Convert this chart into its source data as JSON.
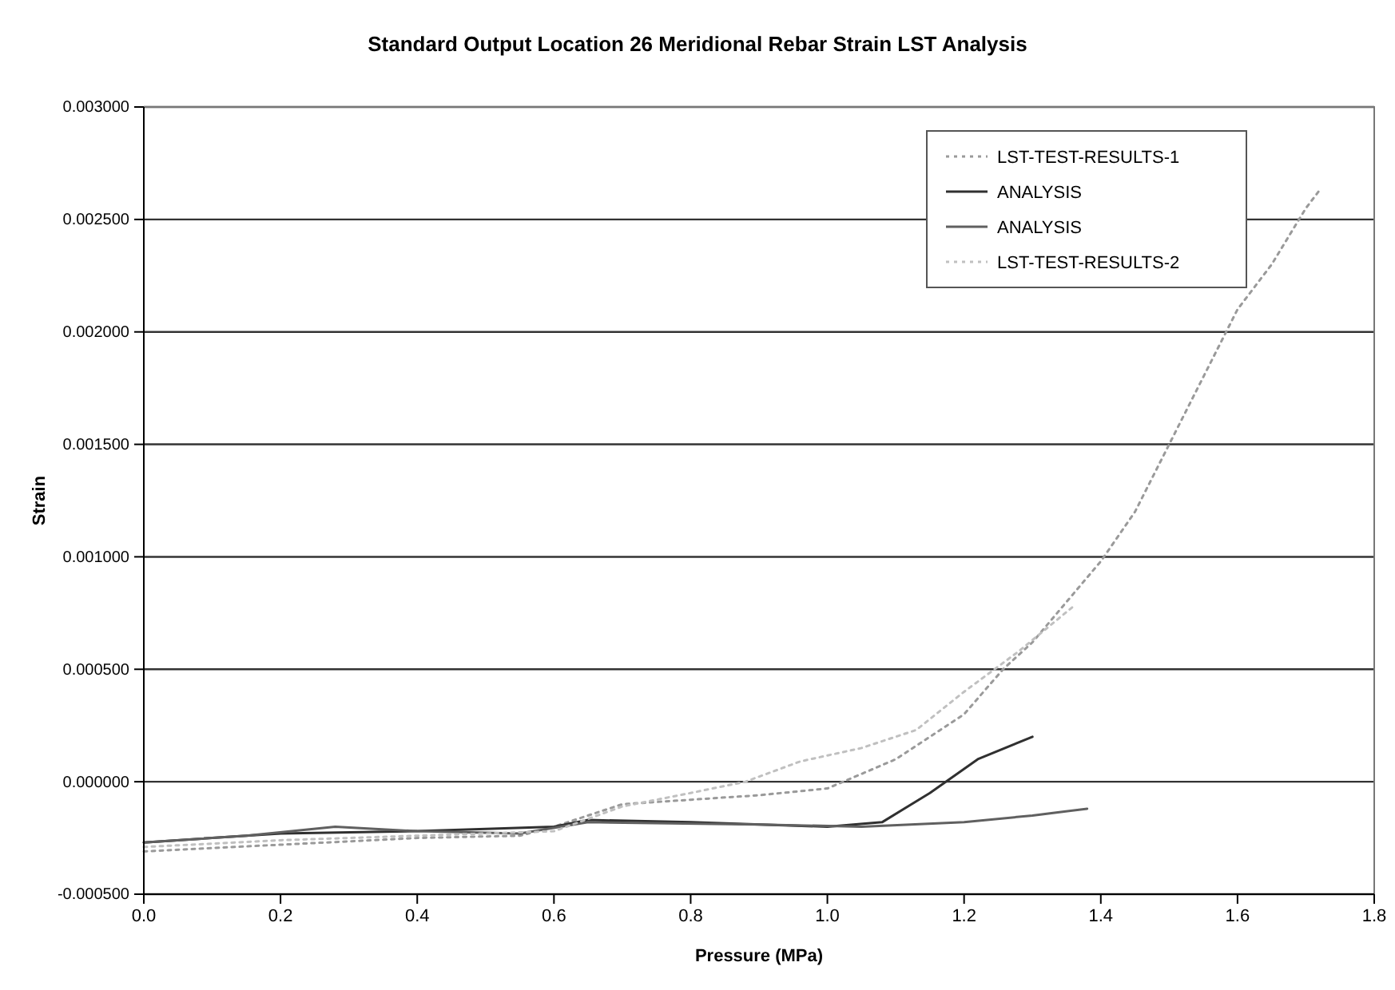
{
  "chart_data": {
    "type": "line",
    "title": "Standard Output Location 26 Meridional Rebar Strain LST Analysis",
    "xlabel": "Pressure (MPa)",
    "ylabel": "Strain",
    "xlim": [
      0,
      1.8
    ],
    "xticks": [
      {
        "value": 0,
        "label": "0.0"
      },
      {
        "value": 0.2,
        "label": "0.2"
      },
      {
        "value": 0.4,
        "label": "0.4"
      },
      {
        "value": 0.6,
        "label": "0.6"
      },
      {
        "value": 0.8,
        "label": "0.8"
      },
      {
        "value": 1,
        "label": "1.0"
      },
      {
        "value": 1.2,
        "label": "1.2"
      },
      {
        "value": 1.4,
        "label": "1.4"
      },
      {
        "value": 1.6,
        "label": "1.6"
      },
      {
        "value": 1.8,
        "label": "1.8"
      }
    ],
    "ylim": [
      -0.0005,
      0.003
    ],
    "yticks": [
      {
        "value": -0.0005,
        "label": "-0.000500"
      },
      {
        "value": 0,
        "label": "0.000000"
      },
      {
        "value": 0.0005,
        "label": "0.000500"
      },
      {
        "value": 0.001,
        "label": "0.001000"
      },
      {
        "value": 0.0015,
        "label": "0.001500"
      },
      {
        "value": 0.002,
        "label": "0.002000"
      },
      {
        "value": 0.0025,
        "label": "0.002500"
      },
      {
        "value": 0.003,
        "label": "0.003000"
      }
    ],
    "grid": "y",
    "legend": "top right",
    "series": [
      {
        "name": "LST-TEST-RESULTS-1",
        "color": "#9a9a9a",
        "line_style": "dotted",
        "x": [
          0,
          0.2,
          0.4,
          0.55,
          0.6,
          0.7,
          0.8,
          0.9,
          1.0,
          1.1,
          1.2,
          1.257,
          1.3,
          1.4,
          1.45,
          1.5,
          1.55,
          1.6,
          1.65,
          1.7,
          1.72
        ],
        "values": [
          -0.00031,
          -0.00028,
          -0.00025,
          -0.00024,
          -0.0002,
          -0.0001,
          -8e-05,
          -6e-05,
          -3e-05,
          0.0001,
          0.0003,
          0.0005,
          0.00062,
          0.00098,
          0.0012,
          0.0015,
          0.0018,
          0.0021,
          0.0023,
          0.00255,
          0.00263
        ]
      },
      {
        "name": "ANALYSIS",
        "color": "#303030",
        "line_style": "solid",
        "x": [
          0,
          0.2,
          0.4,
          0.6,
          0.65,
          0.8,
          1.0,
          1.08,
          1.15,
          1.22,
          1.3
        ],
        "values": [
          -0.00027,
          -0.00023,
          -0.00022,
          -0.0002,
          -0.00017,
          -0.00018,
          -0.0002,
          -0.00018,
          -5e-05,
          0.0001,
          0.0002
        ]
      },
      {
        "name": "ANALYSIS",
        "color": "#606060",
        "line_style": "solid",
        "x": [
          0,
          0.15,
          0.28,
          0.4,
          0.55,
          0.65,
          0.9,
          1.05,
          1.2,
          1.3,
          1.38
        ],
        "values": [
          -0.00027,
          -0.00024,
          -0.0002,
          -0.00022,
          -0.00023,
          -0.00018,
          -0.00019,
          -0.0002,
          -0.00018,
          -0.00015,
          -0.00012
        ]
      },
      {
        "name": "LST-TEST-RESULTS-2",
        "color": "#c0c0c0",
        "line_style": "dotted",
        "x": [
          0,
          0.2,
          0.4,
          0.6,
          0.7,
          0.8,
          0.88,
          0.96,
          1.05,
          1.13,
          1.2,
          1.28,
          1.36
        ],
        "values": [
          -0.00029,
          -0.00026,
          -0.00024,
          -0.00022,
          -0.00011,
          -5e-05,
          0,
          9e-05,
          0.00015,
          0.00023,
          0.0004,
          0.00058,
          0.00078
        ]
      }
    ]
  }
}
